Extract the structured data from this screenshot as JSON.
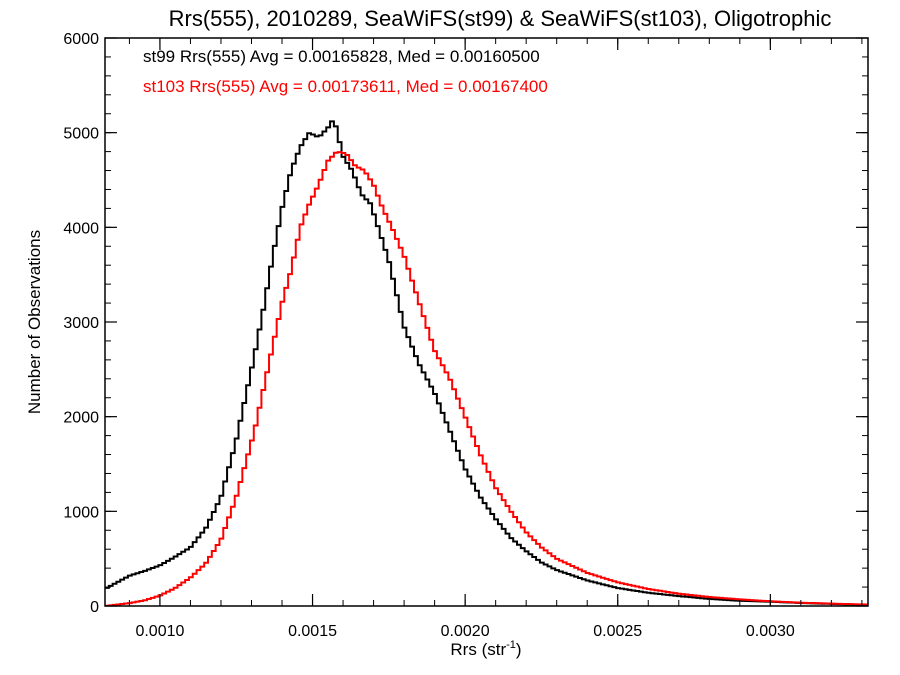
{
  "chart_data": {
    "type": "line",
    "title": "Rrs(555), 2010289, SeaWiFS(st99) & SeaWiFS(st103), Oligotrophic",
    "xlabel_main": "Rrs (str",
    "xlabel_exp": "-1",
    "xlabel_tail": ")",
    "ylabel": "Number of Observations",
    "xlim": [
      0.00082,
      0.00332
    ],
    "ylim": [
      0,
      6000
    ],
    "grid": false,
    "x_ticks": [
      0.001,
      0.0015,
      0.002,
      0.0025,
      0.003
    ],
    "x_tick_labels": [
      "0.0010",
      "0.0015",
      "0.0020",
      "0.0025",
      "0.0030"
    ],
    "y_ticks": [
      0,
      1000,
      2000,
      3000,
      4000,
      5000,
      6000
    ],
    "y_tick_labels": [
      "0",
      "1000",
      "2000",
      "3000",
      "4000",
      "5000",
      "6000"
    ],
    "legend_position": "top-left",
    "legend": [
      {
        "text": "st99 Rrs(555) Avg = 0.00165828, Med = 0.00160500",
        "color": "#000000"
      },
      {
        "text": "st103 Rrs(555) Avg = 0.00173611, Med = 0.00167400",
        "color": "#ff0000"
      }
    ],
    "series": [
      {
        "color": "#000000",
        "x": [
          0.00082,
          0.0009,
          0.00095,
          0.001,
          0.00105,
          0.0011,
          0.00115,
          0.0012,
          0.00125,
          0.00128,
          0.00131,
          0.00134,
          0.00137,
          0.0014,
          0.00143,
          0.00146,
          0.00149,
          0.00152,
          0.00155,
          0.00157,
          0.0016,
          0.00163,
          0.00166,
          0.00169,
          0.00172,
          0.00175,
          0.0018,
          0.00185,
          0.0019,
          0.00195,
          0.002,
          0.00205,
          0.0021,
          0.00215,
          0.0022,
          0.00225,
          0.0023,
          0.0024,
          0.0025,
          0.0026,
          0.0027,
          0.0028,
          0.0029,
          0.003,
          0.0031,
          0.0032,
          0.00332
        ],
        "y": [
          180,
          320,
          370,
          430,
          520,
          620,
          820,
          1150,
          1750,
          2200,
          2650,
          3150,
          3700,
          4200,
          4600,
          4850,
          5000,
          4950,
          5050,
          5150,
          4750,
          4600,
          4350,
          4250,
          3950,
          3650,
          2950,
          2550,
          2250,
          1850,
          1450,
          1150,
          920,
          720,
          580,
          460,
          380,
          270,
          190,
          140,
          105,
          75,
          55,
          45,
          32,
          22,
          12
        ]
      },
      {
        "color": "#ff0000",
        "x": [
          0.00082,
          0.0009,
          0.00095,
          0.001,
          0.00105,
          0.0011,
          0.00115,
          0.0012,
          0.00125,
          0.00128,
          0.00131,
          0.00134,
          0.00137,
          0.0014,
          0.00143,
          0.00146,
          0.00149,
          0.00152,
          0.00155,
          0.00158,
          0.00161,
          0.00164,
          0.00167,
          0.0017,
          0.00173,
          0.00176,
          0.0018,
          0.00185,
          0.0019,
          0.00195,
          0.002,
          0.00205,
          0.0021,
          0.00215,
          0.0022,
          0.00225,
          0.0023,
          0.0024,
          0.0025,
          0.0026,
          0.0027,
          0.0028,
          0.0029,
          0.003,
          0.0031,
          0.0032,
          0.00332
        ],
        "y": [
          0,
          30,
          60,
          110,
          190,
          300,
          450,
          700,
          1150,
          1500,
          1850,
          2300,
          2750,
          3200,
          3550,
          4000,
          4250,
          4450,
          4700,
          4800,
          4780,
          4650,
          4600,
          4450,
          4200,
          4000,
          3700,
          3200,
          2700,
          2400,
          2000,
          1600,
          1250,
          1000,
          780,
          620,
          500,
          350,
          250,
          180,
          130,
          95,
          70,
          50,
          35,
          25,
          15
        ]
      }
    ]
  }
}
